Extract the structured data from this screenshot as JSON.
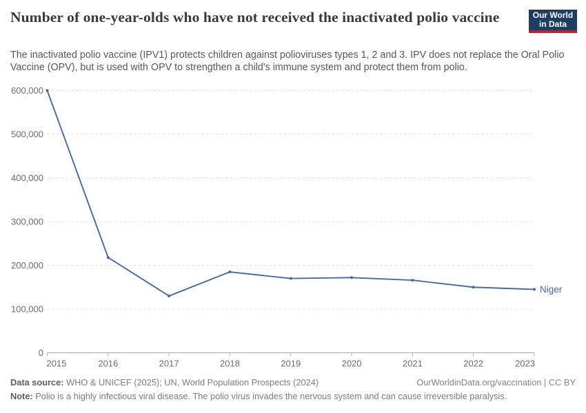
{
  "header": {
    "title": "Number of one-year-olds who have not received the inactivated polio vaccine",
    "subtitle": "The inactivated polio vaccine (IPV1) protects children against polioviruses types 1, 2 and 3. IPV does not replace the Oral Polio Vaccine (OPV), but is used with OPV to strengthen a child's immune system and protect them from polio.",
    "logo": {
      "line1": "Our World",
      "line2": "in Data",
      "bg_color": "#1d3d63",
      "accent_color": "#b9252e"
    }
  },
  "chart_data": {
    "type": "line",
    "title": "Number of one-year-olds who have not received the inactivated polio vaccine",
    "x": [
      2015,
      2016,
      2017,
      2018,
      2019,
      2020,
      2021,
      2022,
      2023
    ],
    "series": [
      {
        "name": "Niger",
        "color": "#4669a5",
        "values": [
          600000,
          218000,
          130000,
          185000,
          170000,
          172000,
          166000,
          150000,
          145000
        ]
      }
    ],
    "xlabel": "",
    "ylabel": "",
    "ylim": [
      0,
      600000
    ],
    "yticks": [
      0,
      100000,
      200000,
      300000,
      400000,
      500000,
      600000
    ],
    "grid": "horizontal-dashed",
    "legend_position": "end-of-line-label"
  },
  "footer": {
    "datasource_label": "Data source:",
    "datasource_text": "WHO & UNICEF (2025); UN, World Population Prospects (2024)",
    "license_text": "OurWorldinData.org/vaccination | CC BY",
    "note_label": "Note:",
    "note_text": "Polio is a highly infectious viral disease. The polio virus invades the nervous system and can cause irreversible paralysis."
  }
}
